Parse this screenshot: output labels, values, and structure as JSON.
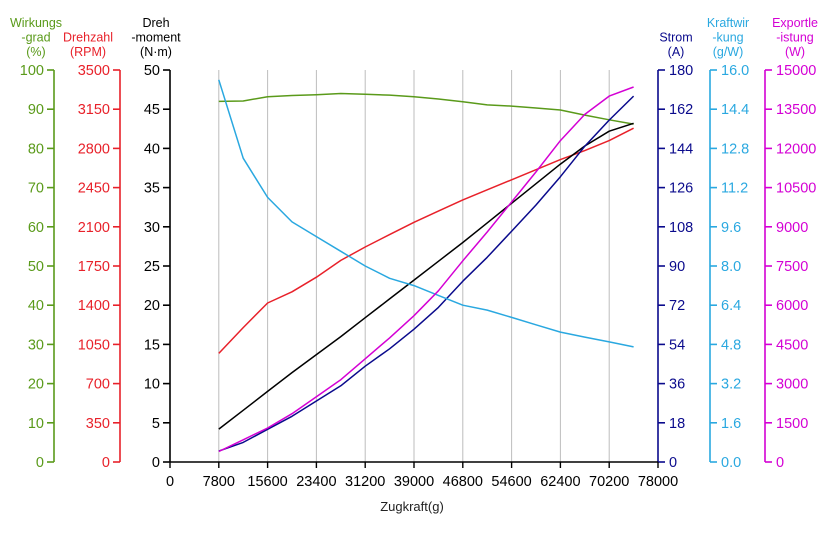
{
  "chart_data": {
    "type": "line",
    "xlabel": "Zugkraft(g)",
    "x_ticks": [
      "0",
      "7800",
      "15600",
      "23400",
      "31200",
      "39000",
      "46800",
      "54600",
      "62400",
      "70200",
      "78000"
    ],
    "xlim": [
      0,
      78000
    ],
    "grid": "vertical",
    "axes": {
      "efficiency": {
        "title": [
          "Wirkungs",
          "-grad",
          "(%)"
        ],
        "ticks": [
          "0",
          "10",
          "20",
          "30",
          "40",
          "50",
          "60",
          "70",
          "80",
          "90",
          "100"
        ],
        "ylim": [
          0,
          100
        ],
        "color": "#5a9a1a"
      },
      "rpm": {
        "title": [
          "Drehzahl",
          "(RPM)"
        ],
        "ticks": [
          "0",
          "350",
          "700",
          "1050",
          "1400",
          "1750",
          "2100",
          "2450",
          "2800",
          "3150",
          "3500"
        ],
        "ylim": [
          0,
          3500
        ],
        "color": "#e8212a"
      },
      "torque": {
        "title": [
          "Dreh",
          "-moment",
          "(N·m)"
        ],
        "ticks": [
          "0",
          "5",
          "10",
          "15",
          "20",
          "25",
          "30",
          "35",
          "40",
          "45",
          "50"
        ],
        "ylim": [
          0,
          50
        ],
        "color": "#000000"
      },
      "current": {
        "title": [
          "Strom",
          "(A)"
        ],
        "ticks": [
          "0",
          "18",
          "36",
          "54",
          "72",
          "90",
          "108",
          "126",
          "144",
          "162",
          "180"
        ],
        "ylim": [
          0,
          180
        ],
        "color": "#0a0a8c"
      },
      "efficiency_gw": {
        "title": [
          "Kraftwir",
          "-kung",
          "(g/W)"
        ],
        "ticks": [
          "0.0",
          "1.6",
          "3.2",
          "4.8",
          "6.4",
          "8.0",
          "9.6",
          "11.2",
          "12.8",
          "14.4",
          "16.0"
        ],
        "ylim": [
          0,
          16
        ],
        "color": "#2aa8e0"
      },
      "power": {
        "title": [
          "Exportle",
          "-istung",
          "(W)"
        ],
        "ticks": [
          "0",
          "1500",
          "3000",
          "4500",
          "6000",
          "7500",
          "9000",
          "10500",
          "12000",
          "13500",
          "15000"
        ],
        "ylim": [
          0,
          15000
        ],
        "color": "#d400d4"
      }
    },
    "series": [
      {
        "axis": "efficiency",
        "x": [
          7800,
          11700,
          15600,
          19500,
          23400,
          27300,
          31200,
          35100,
          39000,
          42900,
          46800,
          50700,
          54600,
          58500,
          62400,
          66300,
          70200,
          74100
        ],
        "y": [
          92.0,
          92.1,
          93.2,
          93.5,
          93.7,
          94.0,
          93.8,
          93.6,
          93.2,
          92.6,
          91.9,
          91.1,
          90.8,
          90.3,
          89.8,
          88.5,
          87.3,
          86.2
        ]
      },
      {
        "axis": "rpm",
        "x": [
          7800,
          11700,
          15600,
          19500,
          23400,
          27300,
          31200,
          35100,
          39000,
          42900,
          46800,
          50700,
          54600,
          58500,
          62400,
          66300,
          70200,
          74100
        ],
        "y": [
          970,
          1200,
          1420,
          1520,
          1650,
          1800,
          1920,
          2030,
          2140,
          2240,
          2340,
          2430,
          2520,
          2610,
          2700,
          2780,
          2870,
          2980
        ]
      },
      {
        "axis": "torque",
        "x": [
          7800,
          11700,
          15600,
          19500,
          23400,
          27300,
          31200,
          35100,
          39000,
          42900,
          46800,
          50700,
          54600,
          58500,
          62400,
          66300,
          70200,
          74100
        ],
        "y": [
          4.2,
          6.6,
          9.0,
          11.4,
          13.7,
          16.0,
          18.4,
          20.8,
          23.2,
          25.6,
          28.0,
          30.5,
          33.0,
          35.5,
          38.0,
          40.3,
          42.2,
          43.2
        ]
      },
      {
        "axis": "current",
        "x": [
          7800,
          11700,
          15600,
          19500,
          23400,
          27300,
          31200,
          35100,
          39000,
          42900,
          46800,
          50700,
          54600,
          58500,
          62400,
          66300,
          70200,
          74100
        ],
        "y": [
          5,
          9,
          15,
          21,
          28,
          35,
          44,
          52,
          61,
          71,
          83,
          94,
          106,
          118,
          131,
          145,
          157,
          168
        ]
      },
      {
        "axis": "efficiency_gw",
        "x": [
          7800,
          11700,
          15600,
          19500,
          23400,
          27300,
          31200,
          35100,
          39000,
          42900,
          46800,
          50700,
          54600,
          58500,
          62400,
          66300,
          70200,
          74100
        ],
        "y": [
          15.6,
          12.4,
          10.8,
          9.8,
          9.2,
          8.6,
          8.0,
          7.5,
          7.2,
          6.8,
          6.4,
          6.2,
          5.9,
          5.6,
          5.3,
          5.1,
          4.9,
          4.7
        ]
      },
      {
        "axis": "power",
        "x": [
          7800,
          11700,
          15600,
          19500,
          23400,
          27300,
          31200,
          35100,
          39000,
          42900,
          46800,
          50700,
          54600,
          58500,
          62400,
          66300,
          70200,
          74100
        ],
        "y": [
          400,
          850,
          1300,
          1850,
          2500,
          3150,
          3950,
          4750,
          5600,
          6550,
          7700,
          8800,
          9950,
          11100,
          12300,
          13300,
          14000,
          14350
        ]
      }
    ]
  }
}
